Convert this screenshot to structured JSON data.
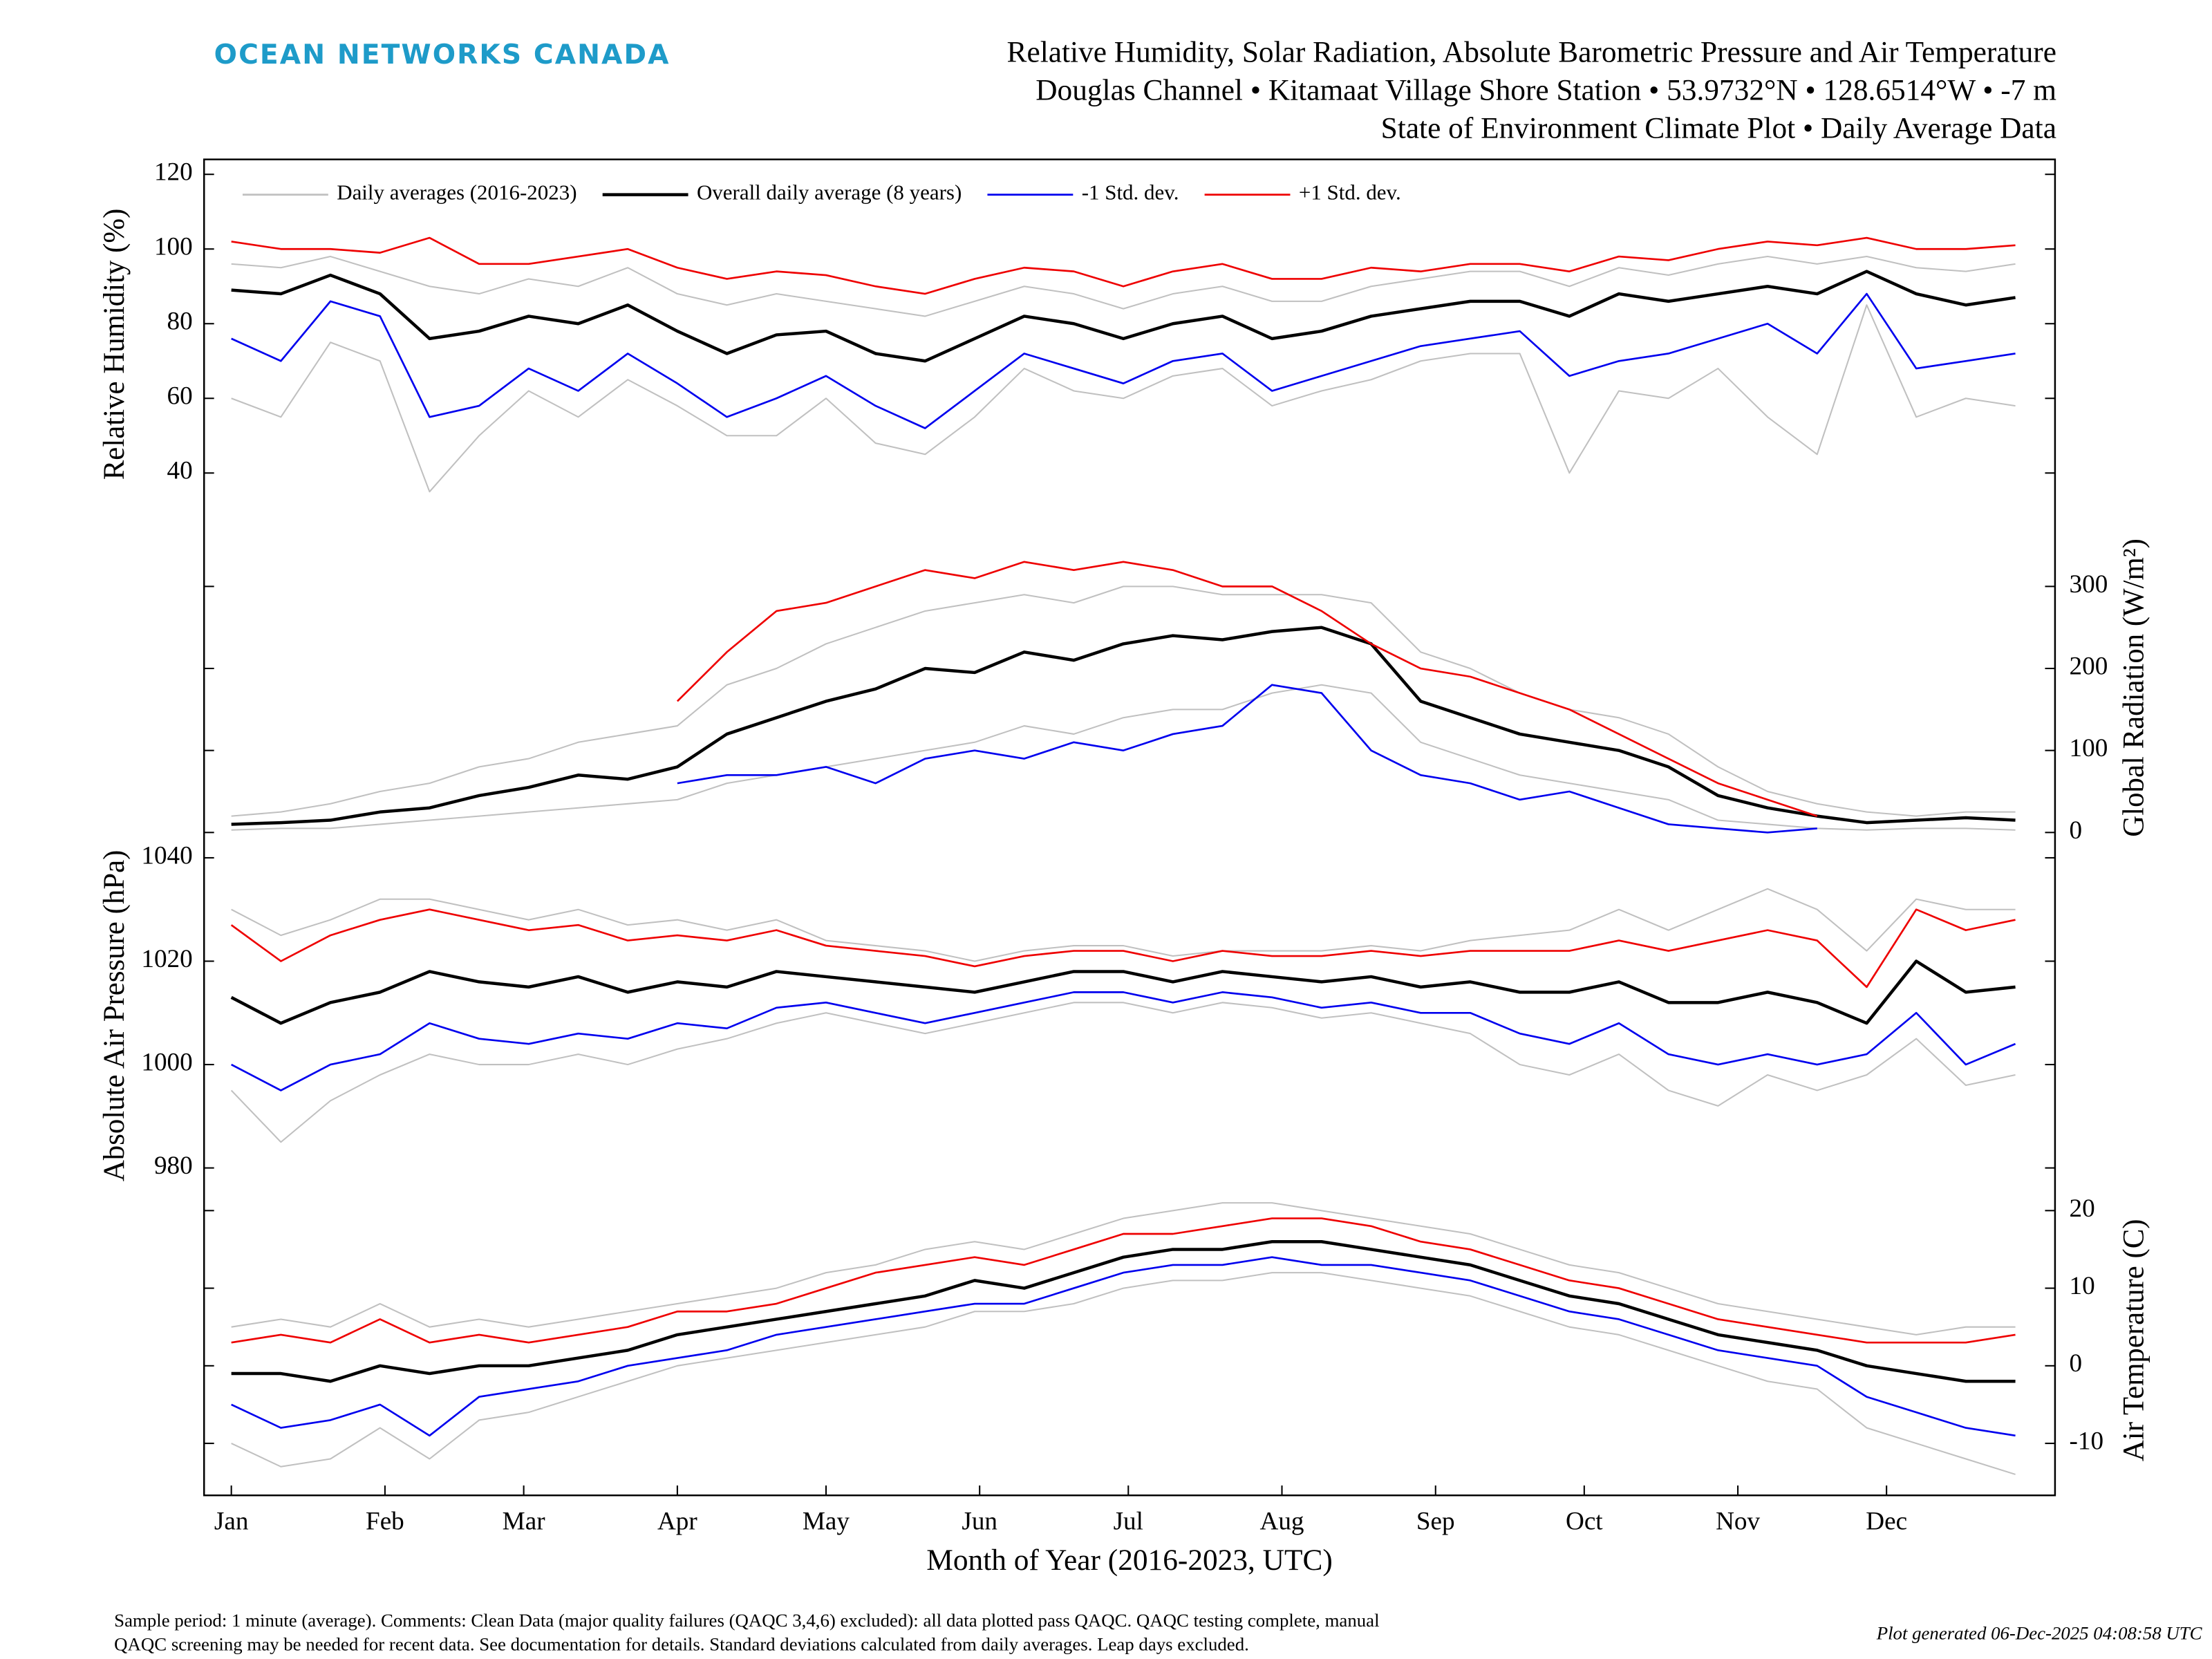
{
  "header": {
    "brand": "OCEAN NETWORKS CANADA",
    "title_lines": [
      "Relative Humidity, Solar Radiation, Absolute Barometric Pressure and Air Temperature",
      "Douglas Channel • Kitamaat Village Shore Station • 53.9732°N • 128.6514°W • -7 m",
      "State of Environment Climate Plot • Daily Average Data"
    ]
  },
  "footer": {
    "notes": [
      "Sample period: 1 minute (average). Comments: Clean Data (major quality failures (QAQC 3,4,6) excluded): all data plotted pass QAQC. QAQC testing complete, manual",
      "QAQC screening may be needed for recent data. See documentation for details. Standard deviations calculated from daily averages. Leap days excluded."
    ],
    "generated": "Plot generated 06-Dec-2025 04:08:58 UTC"
  },
  "chart_data": [
    {
      "type": "line",
      "ylabel": "Relative Humidity (%)",
      "axis_side": "left",
      "label_color": "#000000",
      "ylim": [
        25,
        124
      ],
      "yticks": [
        40,
        60,
        80,
        100,
        120
      ],
      "series": [
        {
          "name": "Daily averages (2016-2023)",
          "color": "#c0c0c0",
          "values": [
            96,
            95,
            98,
            94,
            90,
            88,
            92,
            90,
            95,
            88,
            85,
            88,
            86,
            84,
            82,
            86,
            90,
            88,
            84,
            88,
            90,
            86,
            86,
            90,
            92,
            94,
            94,
            90,
            95,
            93,
            96,
            98,
            96,
            98,
            95,
            94,
            96
          ]
        },
        {
          "color": "#c0c0c0",
          "values": [
            60,
            55,
            75,
            70,
            35,
            50,
            62,
            55,
            65,
            58,
            50,
            50,
            60,
            48,
            45,
            55,
            68,
            62,
            60,
            66,
            68,
            58,
            62,
            65,
            70,
            72,
            72,
            40,
            62,
            60,
            68,
            55,
            45,
            85,
            55,
            60,
            58
          ]
        },
        {
          "name": "Overall daily average (8 years)",
          "color": "#000000",
          "values": [
            89,
            88,
            93,
            88,
            76,
            78,
            82,
            80,
            85,
            78,
            72,
            77,
            78,
            72,
            70,
            76,
            82,
            80,
            76,
            80,
            82,
            76,
            78,
            82,
            84,
            86,
            86,
            82,
            88,
            86,
            88,
            90,
            88,
            94,
            88,
            85,
            87
          ]
        },
        {
          "name": "-1 Std. dev.",
          "color": "#0000ee",
          "values": [
            76,
            70,
            86,
            82,
            55,
            58,
            68,
            62,
            72,
            64,
            55,
            60,
            66,
            58,
            52,
            62,
            72,
            68,
            64,
            70,
            72,
            62,
            66,
            70,
            74,
            76,
            78,
            66,
            70,
            72,
            76,
            80,
            72,
            88,
            68,
            70,
            72
          ]
        },
        {
          "name": "+1 Std. dev.",
          "color": "#ee0000",
          "values": [
            102,
            100,
            100,
            99,
            103,
            96,
            96,
            98,
            100,
            95,
            92,
            94,
            93,
            90,
            88,
            92,
            95,
            94,
            90,
            94,
            96,
            92,
            92,
            95,
            94,
            96,
            96,
            94,
            98,
            97,
            100,
            102,
            101,
            103,
            100,
            100,
            101
          ]
        }
      ]
    },
    {
      "type": "line",
      "ylabel": "Global Radiation (W/m²)",
      "axis_side": "right",
      "label_color": "#8c8c8c",
      "ylim": [
        -17,
        370
      ],
      "yticks": [
        0,
        100,
        200,
        300
      ],
      "series": [
        {
          "color": "#c0c0c0",
          "values": [
            20,
            25,
            35,
            50,
            60,
            80,
            90,
            110,
            120,
            130,
            180,
            200,
            230,
            250,
            270,
            280,
            290,
            280,
            300,
            300,
            290,
            290,
            290,
            280,
            220,
            200,
            170,
            150,
            140,
            120,
            80,
            50,
            35,
            25,
            20,
            25,
            25
          ]
        },
        {
          "color": "#c0c0c0",
          "values": [
            3,
            5,
            5,
            10,
            15,
            20,
            25,
            30,
            35,
            40,
            60,
            70,
            80,
            90,
            100,
            110,
            130,
            120,
            140,
            150,
            150,
            170,
            180,
            170,
            110,
            90,
            70,
            60,
            50,
            40,
            15,
            10,
            5,
            3,
            5,
            5,
            3
          ]
        },
        {
          "color": "#000000",
          "values": [
            10,
            12,
            15,
            25,
            30,
            45,
            55,
            70,
            65,
            80,
            120,
            140,
            160,
            175,
            200,
            195,
            220,
            210,
            230,
            240,
            235,
            245,
            250,
            230,
            160,
            140,
            120,
            110,
            100,
            80,
            45,
            30,
            20,
            12,
            15,
            18,
            15
          ]
        },
        {
          "color": "#0000ee",
          "values": [
            null,
            null,
            null,
            null,
            null,
            null,
            null,
            null,
            null,
            60,
            70,
            70,
            80,
            60,
            90,
            100,
            90,
            110,
            100,
            120,
            130,
            180,
            170,
            100,
            70,
            60,
            40,
            50,
            30,
            10,
            5,
            0,
            5,
            null,
            null,
            null,
            null
          ]
        },
        {
          "color": "#ee0000",
          "values": [
            null,
            null,
            null,
            null,
            null,
            null,
            null,
            null,
            null,
            160,
            220,
            270,
            280,
            300,
            320,
            310,
            330,
            320,
            330,
            320,
            300,
            300,
            270,
            230,
            200,
            190,
            170,
            150,
            120,
            90,
            60,
            40,
            20,
            null,
            null,
            null,
            null
          ]
        }
      ]
    },
    {
      "type": "line",
      "ylabel": "Absolute Air Pressure (hPa)",
      "axis_side": "left",
      "label_color": "#000000",
      "ylim": [
        976.7,
        1042.2
      ],
      "yticks": [
        980,
        1000,
        1020,
        1040
      ],
      "series": [
        {
          "color": "#c0c0c0",
          "values": [
            1030,
            1025,
            1028,
            1032,
            1032,
            1030,
            1028,
            1030,
            1027,
            1028,
            1026,
            1028,
            1024,
            1023,
            1022,
            1020,
            1022,
            1023,
            1023,
            1021,
            1022,
            1022,
            1022,
            1023,
            1022,
            1024,
            1025,
            1026,
            1030,
            1026,
            1030,
            1034,
            1030,
            1022,
            1032,
            1030,
            1030
          ]
        },
        {
          "color": "#c0c0c0",
          "values": [
            995,
            985,
            993,
            998,
            1002,
            1000,
            1000,
            1002,
            1000,
            1003,
            1005,
            1008,
            1010,
            1008,
            1006,
            1008,
            1010,
            1012,
            1012,
            1010,
            1012,
            1011,
            1009,
            1010,
            1008,
            1006,
            1000,
            998,
            1002,
            995,
            992,
            998,
            995,
            998,
            1005,
            996,
            998
          ]
        },
        {
          "color": "#000000",
          "values": [
            1013,
            1008,
            1012,
            1014,
            1018,
            1016,
            1015,
            1017,
            1014,
            1016,
            1015,
            1018,
            1017,
            1016,
            1015,
            1014,
            1016,
            1018,
            1018,
            1016,
            1018,
            1017,
            1016,
            1017,
            1015,
            1016,
            1014,
            1014,
            1016,
            1012,
            1012,
            1014,
            1012,
            1008,
            1020,
            1014,
            1015
          ]
        },
        {
          "color": "#0000ee",
          "values": [
            1000,
            995,
            1000,
            1002,
            1008,
            1005,
            1004,
            1006,
            1005,
            1008,
            1007,
            1011,
            1012,
            1010,
            1008,
            1010,
            1012,
            1014,
            1014,
            1012,
            1014,
            1013,
            1011,
            1012,
            1010,
            1010,
            1006,
            1004,
            1008,
            1002,
            1000,
            1002,
            1000,
            1002,
            1010,
            1000,
            1004
          ]
        },
        {
          "color": "#ee0000",
          "values": [
            1027,
            1020,
            1025,
            1028,
            1030,
            1028,
            1026,
            1027,
            1024,
            1025,
            1024,
            1026,
            1023,
            1022,
            1021,
            1019,
            1021,
            1022,
            1022,
            1020,
            1022,
            1021,
            1021,
            1022,
            1021,
            1022,
            1022,
            1022,
            1024,
            1022,
            1024,
            1026,
            1024,
            1015,
            1030,
            1026,
            1028
          ]
        }
      ]
    },
    {
      "type": "line",
      "ylabel": "Air Temperature (C)",
      "axis_side": "right",
      "label_color": "#8c8c8c",
      "ylim": [
        -16.7,
        23.3
      ],
      "yticks": [
        -10,
        0,
        10,
        20
      ],
      "xlabel": "Month of Year (2016-2023, UTC)",
      "xlim": [
        -4.5,
        369
      ],
      "xticks": [
        {
          "value": 1,
          "label": "Jan"
        },
        {
          "value": 32,
          "label": "Feb"
        },
        {
          "value": 60,
          "label": "Mar"
        },
        {
          "value": 91,
          "label": "Apr"
        },
        {
          "value": 121,
          "label": "May"
        },
        {
          "value": 152,
          "label": "Jun"
        },
        {
          "value": 182,
          "label": "Jul"
        },
        {
          "value": 213,
          "label": "Aug"
        },
        {
          "value": 244,
          "label": "Sep"
        },
        {
          "value": 274,
          "label": "Oct"
        },
        {
          "value": 305,
          "label": "Nov"
        },
        {
          "value": 335,
          "label": "Dec"
        }
      ],
      "x": [
        1,
        11,
        21,
        31,
        41,
        51,
        61,
        71,
        81,
        91,
        101,
        111,
        121,
        131,
        141,
        151,
        161,
        171,
        181,
        191,
        201,
        211,
        221,
        231,
        241,
        251,
        261,
        271,
        281,
        291,
        301,
        311,
        321,
        331,
        341,
        351,
        361
      ],
      "series": [
        {
          "color": "#c0c0c0",
          "values": [
            5,
            6,
            5,
            8,
            5,
            6,
            5,
            6,
            7,
            8,
            9,
            10,
            12,
            13,
            15,
            16,
            15,
            17,
            19,
            20,
            21,
            21,
            20,
            19,
            18,
            17,
            15,
            13,
            12,
            10,
            8,
            7,
            6,
            5,
            4,
            5,
            5
          ]
        },
        {
          "color": "#c0c0c0",
          "values": [
            -10,
            -13,
            -12,
            -8,
            -12,
            -7,
            -6,
            -4,
            -2,
            0,
            1,
            2,
            3,
            4,
            5,
            7,
            7,
            8,
            10,
            11,
            11,
            12,
            12,
            11,
            10,
            9,
            7,
            5,
            4,
            2,
            0,
            -2,
            -3,
            -8,
            -10,
            -12,
            -14
          ]
        },
        {
          "color": "#000000",
          "values": [
            -1,
            -1,
            -2,
            0,
            -1,
            0,
            0,
            1,
            2,
            4,
            5,
            6,
            7,
            8,
            9,
            11,
            10,
            12,
            14,
            15,
            15,
            16,
            16,
            15,
            14,
            13,
            11,
            9,
            8,
            6,
            4,
            3,
            2,
            0,
            -1,
            -2,
            -2
          ]
        },
        {
          "color": "#0000ee",
          "values": [
            -5,
            -8,
            -7,
            -5,
            -9,
            -4,
            -3,
            -2,
            0,
            1,
            2,
            4,
            5,
            6,
            7,
            8,
            8,
            10,
            12,
            13,
            13,
            14,
            13,
            13,
            12,
            11,
            9,
            7,
            6,
            4,
            2,
            1,
            0,
            -4,
            -6,
            -8,
            -9
          ]
        },
        {
          "color": "#ee0000",
          "values": [
            3,
            4,
            3,
            6,
            3,
            4,
            3,
            4,
            5,
            7,
            7,
            8,
            10,
            12,
            13,
            14,
            13,
            15,
            17,
            17,
            18,
            19,
            19,
            18,
            16,
            15,
            13,
            11,
            10,
            8,
            6,
            5,
            4,
            3,
            3,
            3,
            4
          ]
        }
      ]
    }
  ]
}
